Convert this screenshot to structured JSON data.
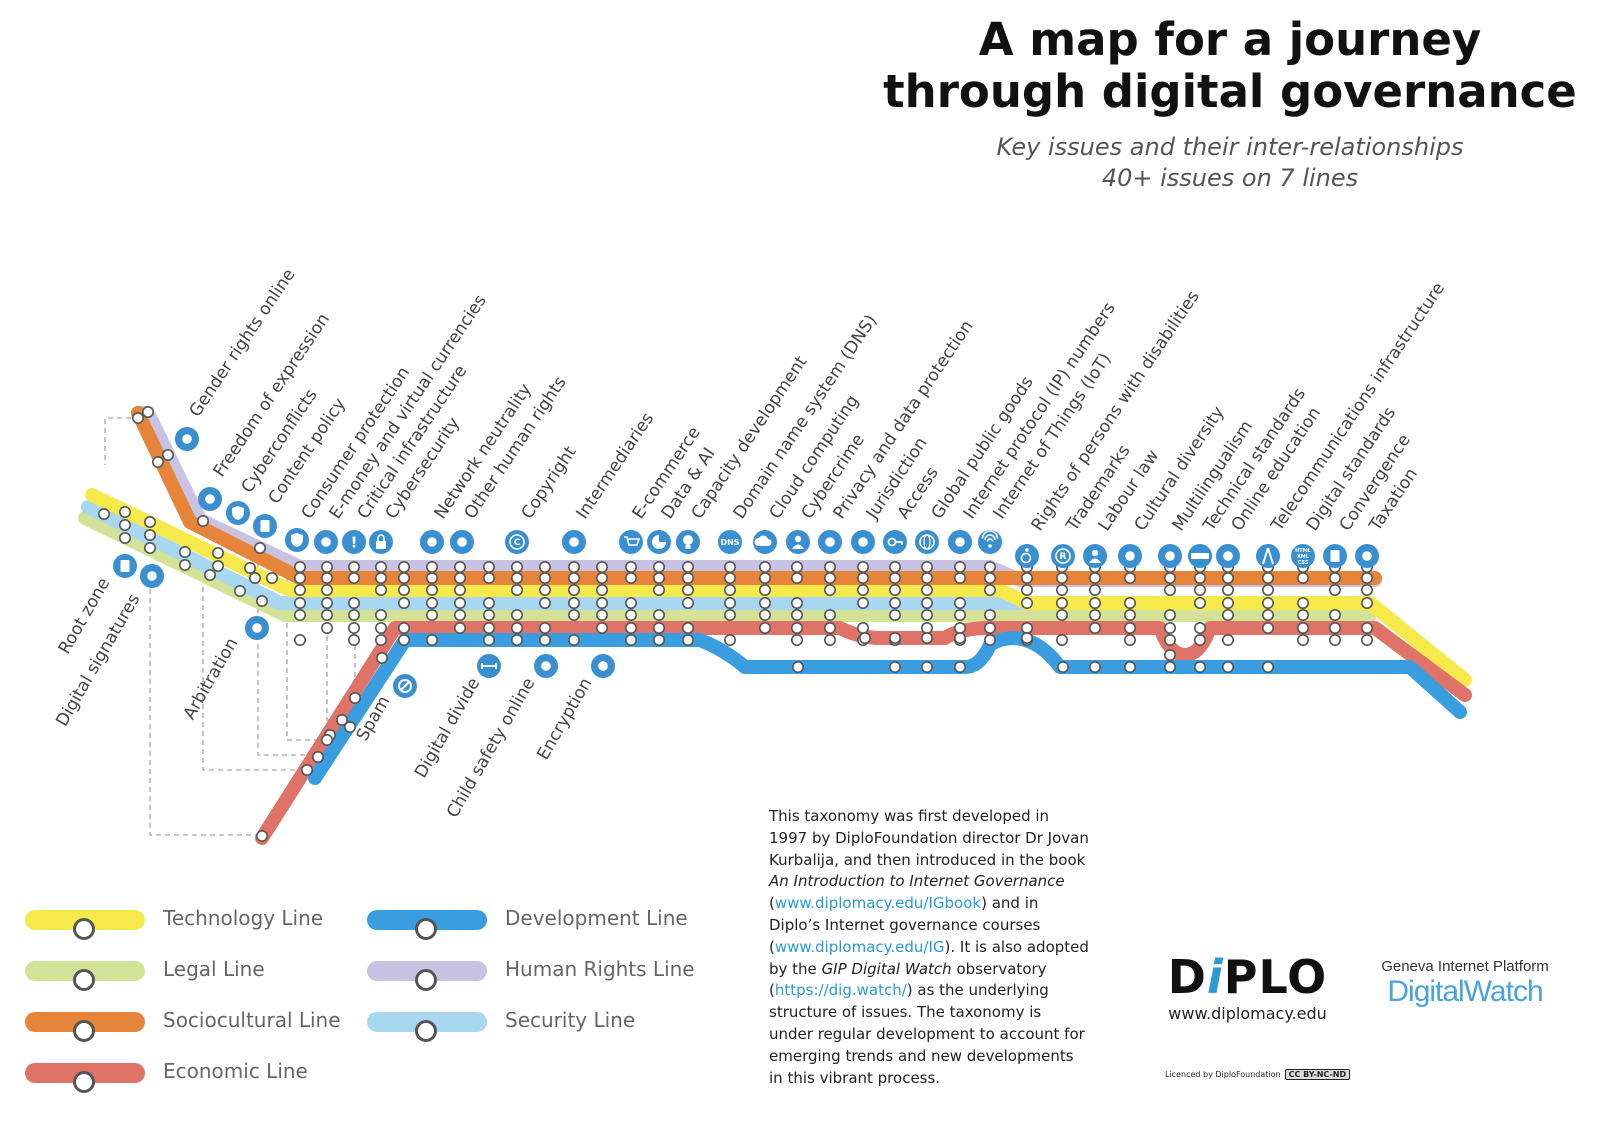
{
  "title": {
    "line1": "A map for a journey",
    "line2": "through digital governance"
  },
  "subtitle": {
    "line1": "Key issues and their inter-relationships",
    "line2": "40+ issues on 7 lines"
  },
  "colors": {
    "technology": "#f6e94b",
    "legal": "#d3e296",
    "sociocultural": "#e6843a",
    "economic": "#e07368",
    "development": "#3a9ddf",
    "human_rights": "#c8c3e2",
    "security": "#a7d8f0",
    "icon": "#3a8fd0"
  },
  "stations_top": [
    {
      "label": "Gender rights online",
      "icon": "gender-icon"
    },
    {
      "label": "Freedom of expression",
      "icon": "speech-icon"
    },
    {
      "label": "Cyberconflicts",
      "icon": "shield-icon"
    },
    {
      "label": "Content policy",
      "icon": "document-icon"
    },
    {
      "label": "Consumer protection",
      "icon": "consumer-shield-icon"
    },
    {
      "label": "E-money and virtual currencies",
      "icon": "coin-icon"
    },
    {
      "label": "Critical infrastructure",
      "icon": "alert-icon"
    },
    {
      "label": "Cybersecurity",
      "icon": "lock-icon"
    },
    {
      "label": "Network neutrality",
      "icon": "network-icon"
    },
    {
      "label": "Other human rights",
      "icon": "hand-icon"
    },
    {
      "label": "Copyright",
      "icon": "copyright-icon"
    },
    {
      "label": "Intermediaries",
      "icon": "nodes-icon"
    },
    {
      "label": "E-commerce",
      "icon": "cart-icon"
    },
    {
      "label": "Data & AI",
      "icon": "pie-icon"
    },
    {
      "label": "Capacity development",
      "icon": "bulb-icon"
    },
    {
      "label": "Domain name system (DNS)",
      "icon": "dns-icon"
    },
    {
      "label": "Cloud computing",
      "icon": "cloud-icon"
    },
    {
      "label": "Cybercrime",
      "icon": "person-icon"
    },
    {
      "label": "Privacy and data protection",
      "icon": "fingerprint-icon"
    },
    {
      "label": "Jurisdiction",
      "icon": "gavel-icon"
    },
    {
      "label": "Access",
      "icon": "key-icon"
    },
    {
      "label": "Global public goods",
      "icon": "globe-icon"
    },
    {
      "label": "Internet protocol (IP) numbers",
      "icon": "ip-icon"
    },
    {
      "label": "Internet of Things (IoT)",
      "icon": "signal-icon"
    },
    {
      "label": "Rights of persons with disabilities",
      "icon": "wheelchair-icon"
    },
    {
      "label": "Trademarks",
      "icon": "registered-icon"
    },
    {
      "label": "Labour law",
      "icon": "worker-icon"
    },
    {
      "label": "Cultural diversity",
      "icon": "culture-icon"
    },
    {
      "label": "Multilingualism",
      "icon": "chat-icon"
    },
    {
      "label": "Technical standards",
      "icon": "ruler-icon"
    },
    {
      "label": "Online education",
      "icon": "education-icon"
    },
    {
      "label": "Telecommunications infrastructure",
      "icon": "tower-icon"
    },
    {
      "label": "Digital standards",
      "icon": "html-icon"
    },
    {
      "label": "Convergence",
      "icon": "device-icon"
    },
    {
      "label": "Taxation",
      "icon": "piggy-icon"
    }
  ],
  "stations_bottom": [
    {
      "label": "Root zone",
      "icon": "server-icon"
    },
    {
      "label": "Digital signatures",
      "icon": "signature-icon"
    },
    {
      "label": "Arbitration",
      "icon": "handshake-icon"
    },
    {
      "label": "Spam",
      "icon": "no-icon"
    },
    {
      "label": "Digital divide",
      "icon": "divide-icon"
    },
    {
      "label": "Child safety online",
      "icon": "stroller-icon"
    },
    {
      "label": "Encryption",
      "icon": "encryption-icon"
    }
  ],
  "icon_texts": {
    "dns": "DNS",
    "html": "HTML\nXML\nCSS",
    "copyright": "C",
    "registered": "R",
    "alert": "!"
  },
  "legend": [
    {
      "label": "Technology Line",
      "key": "technology"
    },
    {
      "label": "Legal Line",
      "key": "legal"
    },
    {
      "label": "Sociocultural Line",
      "key": "sociocultural"
    },
    {
      "label": "Economic Line",
      "key": "economic"
    },
    {
      "label": "Development Line",
      "key": "development"
    },
    {
      "label": "Human Rights Line",
      "key": "human_rights"
    },
    {
      "label": "Security Line",
      "key": "security"
    }
  ],
  "about": {
    "part1": "This taxonomy was first developed in 1997 by DiploFoundation director Dr Jovan Kurbalija, and then introduced in the book ",
    "book": "An Introduction to Internet Governance",
    "link1_pre": " (",
    "link1": "www.diplomacy.edu/IGbook",
    "part2": ") and in Diplo’s Internet governance courses (",
    "link2": "www.diplomacy.edu/IG",
    "part3": "). It is also adopted by the ",
    "gip": "GIP Digital Watch",
    "part4": " observatory (",
    "link3": "https://dig.watch/",
    "part5": ") as the underlying structure of issues. The taxonomy is under regular development to account for emerging trends and new developments in this vibrant process."
  },
  "diplo": {
    "word_pre": "D",
    "word_i": "i",
    "word_post": "PLO",
    "url": "www.diplomacy.edu"
  },
  "gip": {
    "platform": "Geneva Internet Platform",
    "watch": "DigitalWatch"
  },
  "licence": {
    "text": "Licenced by DiploFoundation",
    "badge": "CC BY-NC-ND"
  }
}
